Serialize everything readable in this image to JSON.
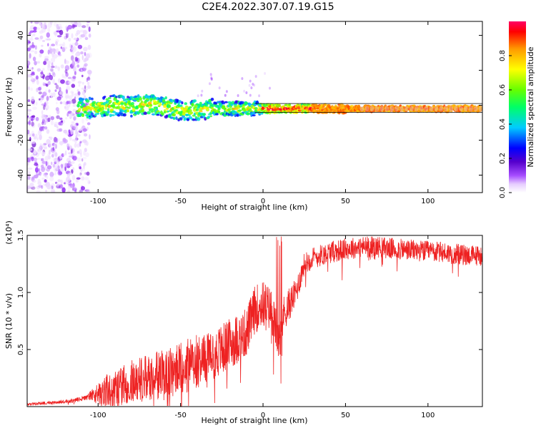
{
  "page_title": "C2E4.2022.307.07.19.G15",
  "chart_data": [
    {
      "type": "heatmap",
      "title": "C2E4.2022.307.07.19.G15",
      "xlabel": "Height of straight line (km)",
      "ylabel": "Frequency (Hz)",
      "xlim": [
        -143,
        133
      ],
      "ylim": [
        -50,
        48
      ],
      "x_ticks": [
        -100,
        -50,
        0,
        50,
        100
      ],
      "y_ticks": [
        -40,
        -20,
        0,
        20,
        40
      ],
      "grid": false,
      "colorbar": {
        "label": "Normalized spectral amplitude",
        "range": [
          0,
          1
        ],
        "ticks": [
          0.0,
          0.2,
          0.4,
          0.6,
          0.8
        ],
        "tick_labels": [
          "0.0",
          "0.2",
          "0.4",
          "0.6",
          "0.8"
        ],
        "colormap": [
          "#ffffff",
          "#e6ccff",
          "#9933ff",
          "#6600cc",
          "#0000ff",
          "#00ccff",
          "#00ff66",
          "#66ff00",
          "#ffff00",
          "#ff9900",
          "#ff0000",
          "#ff0066"
        ]
      },
      "features": {
        "noisy_region_x": [
          -143,
          -107
        ],
        "ridge_points": [
          [
            -110,
            -2
          ],
          [
            -100,
            -1
          ],
          [
            -90,
            0
          ],
          [
            -80,
            -1
          ],
          [
            -70,
            1
          ],
          [
            -60,
            -1
          ],
          [
            -50,
            -3
          ],
          [
            -40,
            -3
          ],
          [
            -30,
            -2
          ],
          [
            -20,
            -2
          ],
          [
            -10,
            -2
          ],
          [
            0,
            -2
          ],
          [
            20,
            -2
          ],
          [
            50,
            -2
          ],
          [
            100,
            -2
          ],
          [
            133,
            -2
          ]
        ],
        "reference_lines_hz": [
          1,
          -4
        ]
      }
    },
    {
      "type": "line",
      "xlabel": "Height of straight line (km)",
      "ylabel": "SNR (10 * v/v)",
      "y_scale_label": "(x10⁴)",
      "xlim": [
        -143,
        133
      ],
      "ylim": [
        0,
        15000
      ],
      "x_ticks": [
        -100,
        -50,
        0,
        50,
        100
      ],
      "y_ticks": [
        5000,
        10000,
        15000
      ],
      "y_tick_labels": [
        "0.5",
        "1.0",
        "1.5"
      ],
      "grid": false,
      "series": [
        {
          "color": "#ee2222",
          "baseline": {
            "x": [
              -143,
              -130,
              -115,
              -107,
              -100,
              -90,
              -80,
              -70,
              -60,
              -50,
              -40,
              -30,
              -20,
              -10,
              -5,
              0,
              5,
              10,
              12,
              20,
              25,
              30,
              40,
              50,
              60,
              70,
              80,
              90,
              100,
              110,
              120,
              133
            ],
            "y": [
              200,
              350,
              500,
              800,
              1200,
              1500,
              2200,
              2500,
              2800,
              3200,
              4000,
              4500,
              5500,
              6500,
              8500,
              9000,
              8500,
              5500,
              8000,
              10000,
              12500,
              13000,
              13500,
              13800,
              14000,
              14000,
              13800,
              13700,
              13600,
              13500,
              13300,
              13200
            ]
          },
          "noise_amplitude": {
            "x": [
              -143,
              -107,
              -95,
              -50,
              0,
              10,
              25,
              133
            ],
            "y": [
              150,
              300,
              2200,
              3500,
              3000,
              2500,
              1400,
              1300
            ]
          }
        }
      ]
    }
  ]
}
